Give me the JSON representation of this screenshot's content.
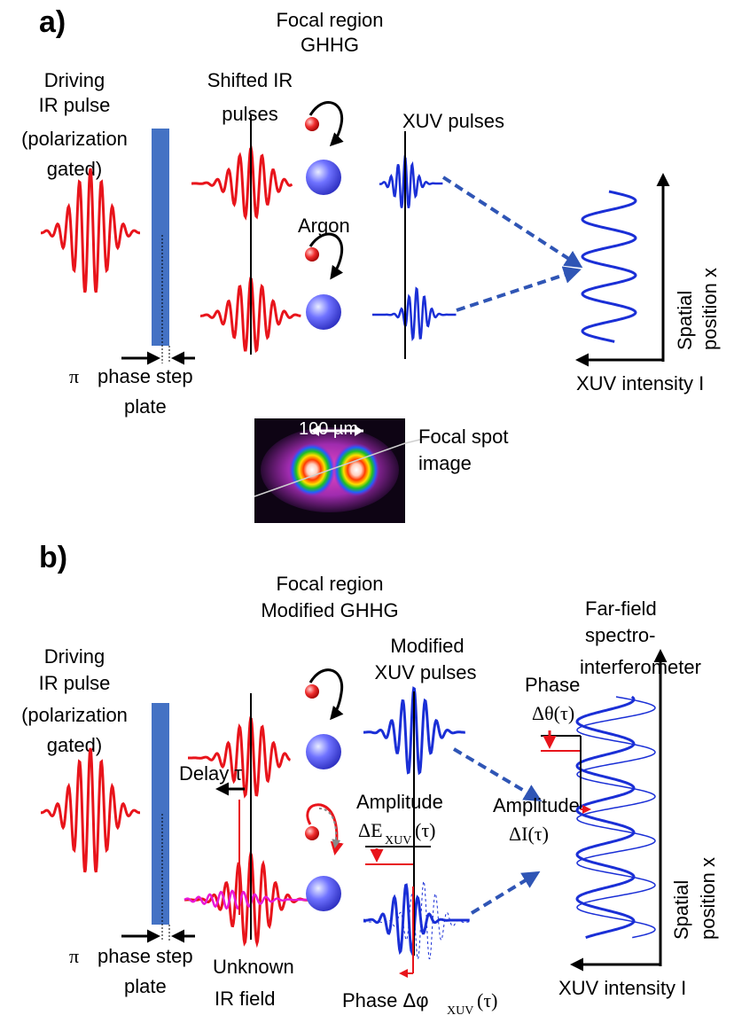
{
  "panel_a": {
    "tag": "a)",
    "focal_title": [
      "Focal region",
      "GHHG"
    ],
    "driving": [
      "Driving",
      "IR pulse",
      "(polarization",
      "gated)"
    ],
    "shifted": [
      "Shifted IR",
      "pulses"
    ],
    "xuv": "XUV pulses",
    "argon": "Argon",
    "phase_step": [
      "phase step",
      "plate"
    ],
    "pi": "π",
    "spatial": [
      "Spatial",
      "position x"
    ],
    "intensity": "XUV intensity I",
    "scale": "100 µm",
    "focal_spot": [
      "Focal spot",
      "image"
    ]
  },
  "panel_b": {
    "tag": "b)",
    "focal_title": [
      "Focal region",
      "Modified GHHG"
    ],
    "driving": [
      "Driving",
      "IR pulse",
      "(polarization",
      "gated)"
    ],
    "modified": [
      "Modified",
      "XUV pulses"
    ],
    "farfield": [
      "Far-field",
      "spectro-",
      "interferometer"
    ],
    "phase_theta": [
      "Phase",
      "Δθ(τ)"
    ],
    "amp_xuv": [
      "Amplitude",
      "ΔE",
      "XUV",
      "(τ)"
    ],
    "amp_i": [
      "Amplitude",
      "ΔI(τ)"
    ],
    "delay": "Delay τ",
    "unknown": [
      "Unknown",
      "IR field"
    ],
    "phase_phi": [
      "Phase Δφ",
      "XUV",
      "(τ)"
    ],
    "phase_step": [
      "phase step",
      "plate"
    ],
    "pi": "π",
    "spatial": [
      "Spatial",
      "position x"
    ],
    "intensity": "XUV intensity I"
  },
  "colors": {
    "ir": "#e8141b",
    "xuv": "#1a2fd6",
    "plate": "#4472c4",
    "dashed": "#2f55b5",
    "unknown": "#e818d6"
  }
}
